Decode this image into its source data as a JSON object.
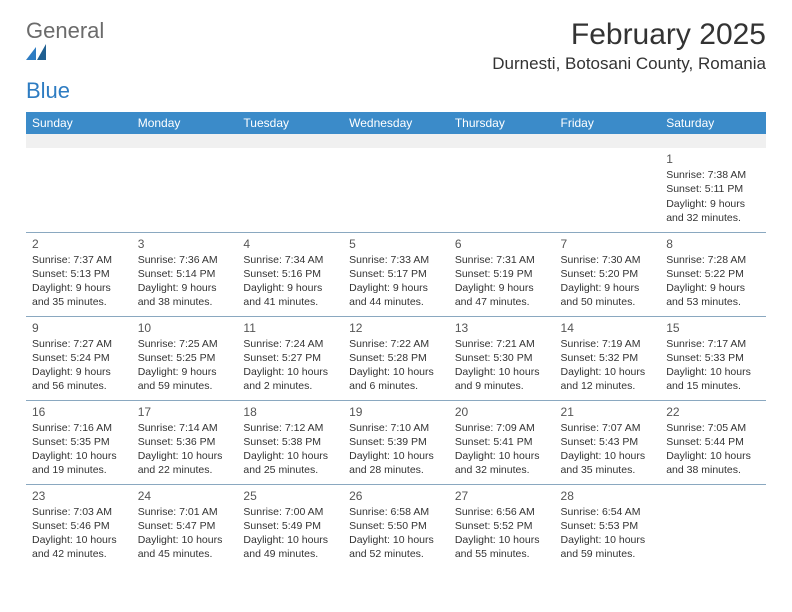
{
  "logo": {
    "text1": "General",
    "text2": "Blue"
  },
  "title": "February 2025",
  "location": "Durnesti, Botosani County, Romania",
  "colors": {
    "header_bg": "#3b8bc9",
    "header_fg": "#ffffff",
    "grid_line": "#8aa8c0",
    "blank_row_bg": "#f0f0f0",
    "logo_gray": "#6b6b6b",
    "logo_blue": "#2e7cc2"
  },
  "daynames": [
    "Sunday",
    "Monday",
    "Tuesday",
    "Wednesday",
    "Thursday",
    "Friday",
    "Saturday"
  ],
  "weeks": [
    [
      null,
      null,
      null,
      null,
      null,
      null,
      {
        "n": "1",
        "sr": "Sunrise: 7:38 AM",
        "ss": "Sunset: 5:11 PM",
        "d1": "Daylight: 9 hours",
        "d2": "and 32 minutes."
      }
    ],
    [
      {
        "n": "2",
        "sr": "Sunrise: 7:37 AM",
        "ss": "Sunset: 5:13 PM",
        "d1": "Daylight: 9 hours",
        "d2": "and 35 minutes."
      },
      {
        "n": "3",
        "sr": "Sunrise: 7:36 AM",
        "ss": "Sunset: 5:14 PM",
        "d1": "Daylight: 9 hours",
        "d2": "and 38 minutes."
      },
      {
        "n": "4",
        "sr": "Sunrise: 7:34 AM",
        "ss": "Sunset: 5:16 PM",
        "d1": "Daylight: 9 hours",
        "d2": "and 41 minutes."
      },
      {
        "n": "5",
        "sr": "Sunrise: 7:33 AM",
        "ss": "Sunset: 5:17 PM",
        "d1": "Daylight: 9 hours",
        "d2": "and 44 minutes."
      },
      {
        "n": "6",
        "sr": "Sunrise: 7:31 AM",
        "ss": "Sunset: 5:19 PM",
        "d1": "Daylight: 9 hours",
        "d2": "and 47 minutes."
      },
      {
        "n": "7",
        "sr": "Sunrise: 7:30 AM",
        "ss": "Sunset: 5:20 PM",
        "d1": "Daylight: 9 hours",
        "d2": "and 50 minutes."
      },
      {
        "n": "8",
        "sr": "Sunrise: 7:28 AM",
        "ss": "Sunset: 5:22 PM",
        "d1": "Daylight: 9 hours",
        "d2": "and 53 minutes."
      }
    ],
    [
      {
        "n": "9",
        "sr": "Sunrise: 7:27 AM",
        "ss": "Sunset: 5:24 PM",
        "d1": "Daylight: 9 hours",
        "d2": "and 56 minutes."
      },
      {
        "n": "10",
        "sr": "Sunrise: 7:25 AM",
        "ss": "Sunset: 5:25 PM",
        "d1": "Daylight: 9 hours",
        "d2": "and 59 minutes."
      },
      {
        "n": "11",
        "sr": "Sunrise: 7:24 AM",
        "ss": "Sunset: 5:27 PM",
        "d1": "Daylight: 10 hours",
        "d2": "and 2 minutes."
      },
      {
        "n": "12",
        "sr": "Sunrise: 7:22 AM",
        "ss": "Sunset: 5:28 PM",
        "d1": "Daylight: 10 hours",
        "d2": "and 6 minutes."
      },
      {
        "n": "13",
        "sr": "Sunrise: 7:21 AM",
        "ss": "Sunset: 5:30 PM",
        "d1": "Daylight: 10 hours",
        "d2": "and 9 minutes."
      },
      {
        "n": "14",
        "sr": "Sunrise: 7:19 AM",
        "ss": "Sunset: 5:32 PM",
        "d1": "Daylight: 10 hours",
        "d2": "and 12 minutes."
      },
      {
        "n": "15",
        "sr": "Sunrise: 7:17 AM",
        "ss": "Sunset: 5:33 PM",
        "d1": "Daylight: 10 hours",
        "d2": "and 15 minutes."
      }
    ],
    [
      {
        "n": "16",
        "sr": "Sunrise: 7:16 AM",
        "ss": "Sunset: 5:35 PM",
        "d1": "Daylight: 10 hours",
        "d2": "and 19 minutes."
      },
      {
        "n": "17",
        "sr": "Sunrise: 7:14 AM",
        "ss": "Sunset: 5:36 PM",
        "d1": "Daylight: 10 hours",
        "d2": "and 22 minutes."
      },
      {
        "n": "18",
        "sr": "Sunrise: 7:12 AM",
        "ss": "Sunset: 5:38 PM",
        "d1": "Daylight: 10 hours",
        "d2": "and 25 minutes."
      },
      {
        "n": "19",
        "sr": "Sunrise: 7:10 AM",
        "ss": "Sunset: 5:39 PM",
        "d1": "Daylight: 10 hours",
        "d2": "and 28 minutes."
      },
      {
        "n": "20",
        "sr": "Sunrise: 7:09 AM",
        "ss": "Sunset: 5:41 PM",
        "d1": "Daylight: 10 hours",
        "d2": "and 32 minutes."
      },
      {
        "n": "21",
        "sr": "Sunrise: 7:07 AM",
        "ss": "Sunset: 5:43 PM",
        "d1": "Daylight: 10 hours",
        "d2": "and 35 minutes."
      },
      {
        "n": "22",
        "sr": "Sunrise: 7:05 AM",
        "ss": "Sunset: 5:44 PM",
        "d1": "Daylight: 10 hours",
        "d2": "and 38 minutes."
      }
    ],
    [
      {
        "n": "23",
        "sr": "Sunrise: 7:03 AM",
        "ss": "Sunset: 5:46 PM",
        "d1": "Daylight: 10 hours",
        "d2": "and 42 minutes."
      },
      {
        "n": "24",
        "sr": "Sunrise: 7:01 AM",
        "ss": "Sunset: 5:47 PM",
        "d1": "Daylight: 10 hours",
        "d2": "and 45 minutes."
      },
      {
        "n": "25",
        "sr": "Sunrise: 7:00 AM",
        "ss": "Sunset: 5:49 PM",
        "d1": "Daylight: 10 hours",
        "d2": "and 49 minutes."
      },
      {
        "n": "26",
        "sr": "Sunrise: 6:58 AM",
        "ss": "Sunset: 5:50 PM",
        "d1": "Daylight: 10 hours",
        "d2": "and 52 minutes."
      },
      {
        "n": "27",
        "sr": "Sunrise: 6:56 AM",
        "ss": "Sunset: 5:52 PM",
        "d1": "Daylight: 10 hours",
        "d2": "and 55 minutes."
      },
      {
        "n": "28",
        "sr": "Sunrise: 6:54 AM",
        "ss": "Sunset: 5:53 PM",
        "d1": "Daylight: 10 hours",
        "d2": "and 59 minutes."
      },
      null
    ]
  ]
}
